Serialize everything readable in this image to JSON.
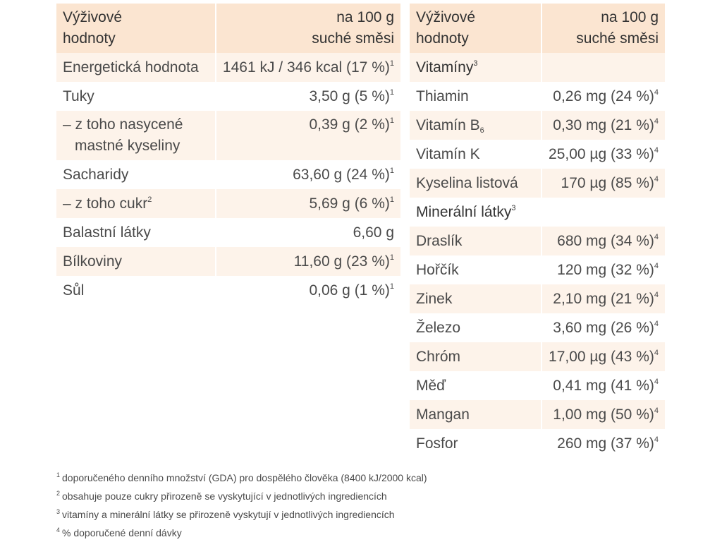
{
  "left_table": {
    "header": {
      "name": [
        "Výživové",
        "hodnoty"
      ],
      "value": [
        "na 100 g",
        "suché směsi"
      ]
    },
    "rows": [
      {
        "name": "Energetická hodnota",
        "value": "1461 kJ / 346 kcal (17 %)",
        "ref": "1"
      },
      {
        "name": "Tuky",
        "value": "3,50 g (5 %)",
        "ref": "1"
      },
      {
        "name": "– z toho nasycené",
        "name2": "mastné kyseliny",
        "value": "0,39 g (2 %)",
        "ref": "1"
      },
      {
        "name": "Sacharidy",
        "value": "63,60 g (24 %)",
        "ref": "1"
      },
      {
        "name": "– z toho cukr",
        "name_ref": "2",
        "value": "5,69 g (6 %)",
        "ref": "1"
      },
      {
        "name": "Balastní látky",
        "value": "6,60 g"
      },
      {
        "name": "Bílkoviny",
        "value": "11,60 g (23 %)",
        "ref": "1"
      },
      {
        "name": "Sůl",
        "value": "0,06 g (1 %)",
        "ref": "1"
      }
    ]
  },
  "right_table": {
    "header": {
      "name": [
        "Výživové",
        "hodnoty"
      ],
      "value": [
        "na 100 g",
        "suché směsi"
      ]
    },
    "rows": [
      {
        "section": true,
        "name": "Vitamíny",
        "name_ref": "3"
      },
      {
        "name": "Thiamin",
        "value": "0,26 mg (24 %)",
        "ref": "4"
      },
      {
        "name": "Vitamín B",
        "name_sub": "6",
        "value": "0,30 mg (21 %)",
        "ref": "4"
      },
      {
        "name": "Vitamín K",
        "value": "25,00 µg (33 %)",
        "ref": "4"
      },
      {
        "name": "Kyselina listová",
        "value": "170 µg (85 %)",
        "ref": "4"
      },
      {
        "section": true,
        "name": "Minerální látky",
        "name_ref": "3"
      },
      {
        "name": "Draslík",
        "value": "680 mg (34 %)",
        "ref": "4"
      },
      {
        "name": "Hořčík",
        "value": "120 mg (32 %)",
        "ref": "4"
      },
      {
        "name": "Zinek",
        "value": "2,10 mg (21 %)",
        "ref": "4"
      },
      {
        "name": "Železo",
        "value": "3,60 mg (26 %)",
        "ref": "4"
      },
      {
        "name": "Chróm",
        "value": "17,00 µg (43 %)",
        "ref": "4"
      },
      {
        "name": "Měď",
        "value": "0,41 mg (41 %)",
        "ref": "4"
      },
      {
        "name": "Mangan",
        "value": "1,00 mg (50 %)",
        "ref": "4"
      },
      {
        "name": "Fosfor",
        "value": "260 mg (37 %)",
        "ref": "4"
      }
    ]
  },
  "footnotes": [
    {
      "mark": "1",
      "text": "doporučeného denního množství (GDA) pro dospělého člověka (8400 kJ/2000 kcal)"
    },
    {
      "mark": "2",
      "text": "obsahuje pouze cukry přirozeně se vyskytující v jednotlivých ingrediencích"
    },
    {
      "mark": "3",
      "text": "vitamíny a minerální látky se přirozeně vyskytují v jednotlivých ingrediencích"
    },
    {
      "mark": "4",
      "text": "% doporučené denní dávky"
    }
  ],
  "colors": {
    "header_bg": "#fbe5d1",
    "row_alt_bg": "#fdf3ea",
    "text": "#4a4a4a"
  }
}
